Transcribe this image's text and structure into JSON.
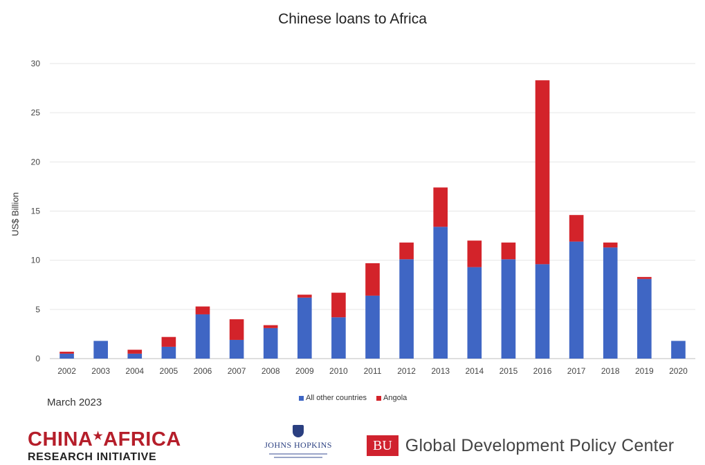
{
  "chart_data": {
    "type": "bar",
    "stacked": true,
    "title": "Chinese loans to Africa",
    "xlabel": "",
    "ylabel": "US$ Billion",
    "ylim": [
      0,
      30
    ],
    "yticks": [
      0,
      5,
      10,
      15,
      20,
      25,
      30
    ],
    "grid": true,
    "legend_position": "bottom",
    "categories": [
      "2002",
      "2003",
      "2004",
      "2005",
      "2006",
      "2007",
      "2008",
      "2009",
      "2010",
      "2011",
      "2012",
      "2013",
      "2014",
      "2015",
      "2016",
      "2017",
      "2018",
      "2019",
      "2020"
    ],
    "series": [
      {
        "name": "All other countries",
        "color": "#3f66c4",
        "values": [
          0.5,
          1.8,
          0.5,
          1.2,
          4.5,
          1.9,
          3.1,
          6.2,
          4.2,
          6.4,
          10.1,
          13.4,
          9.3,
          10.1,
          9.6,
          11.9,
          11.3,
          8.1,
          1.8
        ]
      },
      {
        "name": "Angola",
        "color": "#d3232a",
        "values": [
          0.2,
          0.0,
          0.4,
          1.0,
          0.8,
          2.1,
          0.3,
          0.3,
          2.5,
          3.3,
          1.7,
          4.0,
          2.7,
          1.7,
          18.7,
          2.7,
          0.5,
          0.2,
          0.0
        ]
      }
    ]
  },
  "footer": {
    "date_note": "March 2023",
    "logo_car_line1a": "CHINA",
    "logo_car_star": "★",
    "logo_car_line1b": "AFRICA",
    "logo_car_line2": "RESEARCH INITIATIVE",
    "jhu_name": "JOHNS HOPKINS",
    "bu_box": "BU",
    "bu_text": "Global Development Policy Center"
  }
}
